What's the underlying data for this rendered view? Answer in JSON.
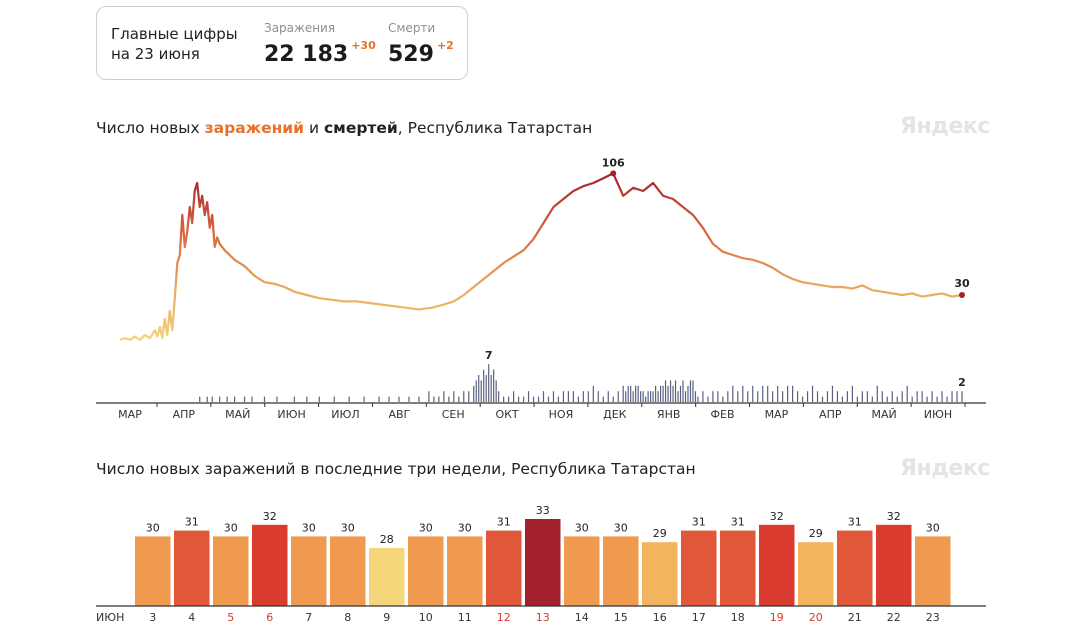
{
  "summary": {
    "label_line1": "Главные цифры",
    "label_line2": "на 23 июня",
    "cases_caption": "Заражения",
    "cases_value": "22 183",
    "cases_delta": "+30",
    "deaths_caption": "Смерти",
    "deaths_value": "529",
    "deaths_delta": "+2"
  },
  "chart1_title": {
    "prefix": "Число новых ",
    "accent": "заражений",
    "middle": " и ",
    "bold": "смертей",
    "suffix": ", Республика Татарстан"
  },
  "chart2_title": "Число новых заражений в последние три недели, Республика Татарстан",
  "logo_text": "Яндекс",
  "colors": {
    "low": "#f5d67a",
    "mid": "#ef9a4f",
    "high": "#e0573a",
    "top": "#a3202c",
    "death_bar": "#5a6180",
    "axis": "#333333",
    "red_label": "#d33a2c"
  },
  "chart_data": [
    {
      "type": "line",
      "ylabel": "",
      "month_labels": [
        "МАР",
        "АПР",
        "МАЙ",
        "ИЮН",
        "ИЮЛ",
        "АВГ",
        "СЕН",
        "ОКТ",
        "НОЯ",
        "ДЕК",
        "ЯНВ",
        "ФЕВ",
        "МАР",
        "АПР",
        "МАЙ",
        "ИЮН"
      ],
      "series": [
        {
          "key": "cases",
          "points": [
            [
              0,
              2
            ],
            [
              2,
              3
            ],
            [
              4,
              2
            ],
            [
              6,
              4
            ],
            [
              8,
              2
            ],
            [
              10,
              5
            ],
            [
              12,
              3
            ],
            [
              14,
              8
            ],
            [
              15,
              4
            ],
            [
              16,
              10
            ],
            [
              17,
              3
            ],
            [
              18,
              15
            ],
            [
              19,
              5
            ],
            [
              20,
              20
            ],
            [
              21,
              8
            ],
            [
              22,
              28
            ],
            [
              23,
              50
            ],
            [
              24,
              55
            ],
            [
              25,
              80
            ],
            [
              26,
              60
            ],
            [
              27,
              70
            ],
            [
              28,
              85
            ],
            [
              29,
              75
            ],
            [
              30,
              95
            ],
            [
              31,
              100
            ],
            [
              32,
              85
            ],
            [
              33,
              92
            ],
            [
              34,
              80
            ],
            [
              35,
              88
            ],
            [
              36,
              72
            ],
            [
              37,
              80
            ],
            [
              38,
              60
            ],
            [
              39,
              66
            ],
            [
              40,
              62
            ],
            [
              42,
              58
            ],
            [
              44,
              55
            ],
            [
              46,
              52
            ],
            [
              50,
              48
            ],
            [
              54,
              42
            ],
            [
              58,
              38
            ],
            [
              62,
              37
            ],
            [
              66,
              35
            ],
            [
              70,
              32
            ],
            [
              75,
              30
            ],
            [
              80,
              28
            ],
            [
              85,
              27
            ],
            [
              90,
              26
            ],
            [
              95,
              26
            ],
            [
              100,
              25
            ],
            [
              105,
              24
            ],
            [
              110,
              23
            ],
            [
              115,
              22
            ],
            [
              120,
              21
            ],
            [
              125,
              22
            ],
            [
              130,
              24
            ],
            [
              134,
              26
            ],
            [
              138,
              30
            ],
            [
              142,
              35
            ],
            [
              146,
              40
            ],
            [
              150,
              45
            ],
            [
              154,
              50
            ],
            [
              158,
              54
            ],
            [
              162,
              58
            ],
            [
              166,
              65
            ],
            [
              170,
              75
            ],
            [
              174,
              85
            ],
            [
              178,
              90
            ],
            [
              182,
              95
            ],
            [
              186,
              98
            ],
            [
              190,
              100
            ],
            [
              194,
              103
            ],
            [
              198,
              106
            ],
            [
              202,
              92
            ],
            [
              206,
              97
            ],
            [
              210,
              95
            ],
            [
              214,
              100
            ],
            [
              218,
              92
            ],
            [
              222,
              90
            ],
            [
              226,
              85
            ],
            [
              230,
              80
            ],
            [
              234,
              72
            ],
            [
              238,
              62
            ],
            [
              242,
              57
            ],
            [
              246,
              55
            ],
            [
              250,
              53
            ],
            [
              254,
              52
            ],
            [
              258,
              50
            ],
            [
              262,
              47
            ],
            [
              266,
              43
            ],
            [
              270,
              40
            ],
            [
              274,
              38
            ],
            [
              278,
              37
            ],
            [
              282,
              36
            ],
            [
              286,
              35
            ],
            [
              290,
              35
            ],
            [
              294,
              34
            ],
            [
              298,
              36
            ],
            [
              302,
              33
            ],
            [
              306,
              32
            ],
            [
              310,
              31
            ],
            [
              314,
              30
            ],
            [
              318,
              31
            ],
            [
              322,
              29
            ],
            [
              326,
              30
            ],
            [
              330,
              31
            ],
            [
              334,
              29
            ],
            [
              338,
              30
            ]
          ],
          "peak": {
            "x": 198,
            "value": 106
          },
          "last": {
            "x": 338,
            "value": 30
          }
        },
        {
          "key": "deaths",
          "points": [
            [
              32,
              1
            ],
            [
              35,
              1
            ],
            [
              37,
              1
            ],
            [
              40,
              1
            ],
            [
              43,
              1
            ],
            [
              46,
              1
            ],
            [
              50,
              1
            ],
            [
              53,
              1
            ],
            [
              58,
              1
            ],
            [
              63,
              1
            ],
            [
              70,
              1
            ],
            [
              75,
              1
            ],
            [
              80,
              1
            ],
            [
              86,
              1
            ],
            [
              92,
              1
            ],
            [
              98,
              1
            ],
            [
              104,
              1
            ],
            [
              108,
              1
            ],
            [
              112,
              1
            ],
            [
              116,
              1
            ],
            [
              120,
              1
            ],
            [
              124,
              2
            ],
            [
              126,
              1
            ],
            [
              128,
              1
            ],
            [
              130,
              2
            ],
            [
              132,
              1
            ],
            [
              134,
              2
            ],
            [
              136,
              1
            ],
            [
              138,
              2
            ],
            [
              140,
              2
            ],
            [
              142,
              3
            ],
            [
              143,
              4
            ],
            [
              144,
              5
            ],
            [
              145,
              4
            ],
            [
              146,
              6
            ],
            [
              147,
              5
            ],
            [
              148,
              7
            ],
            [
              149,
              5
            ],
            [
              150,
              6
            ],
            [
              151,
              4
            ],
            [
              152,
              2
            ],
            [
              154,
              1
            ],
            [
              156,
              1
            ],
            [
              158,
              2
            ],
            [
              160,
              1
            ],
            [
              162,
              1
            ],
            [
              164,
              2
            ],
            [
              166,
              1
            ],
            [
              168,
              1
            ],
            [
              170,
              2
            ],
            [
              172,
              1
            ],
            [
              174,
              2
            ],
            [
              176,
              1
            ],
            [
              178,
              2
            ],
            [
              180,
              2
            ],
            [
              182,
              2
            ],
            [
              184,
              1
            ],
            [
              186,
              2
            ],
            [
              188,
              2
            ],
            [
              190,
              3
            ],
            [
              192,
              2
            ],
            [
              194,
              1
            ],
            [
              196,
              2
            ],
            [
              198,
              1
            ],
            [
              200,
              2
            ],
            [
              202,
              3
            ],
            [
              203,
              2
            ],
            [
              204,
              3
            ],
            [
              205,
              3
            ],
            [
              206,
              2
            ],
            [
              207,
              3
            ],
            [
              208,
              3
            ],
            [
              209,
              2
            ],
            [
              210,
              2
            ],
            [
              211,
              1
            ],
            [
              212,
              2
            ],
            [
              213,
              2
            ],
            [
              214,
              2
            ],
            [
              215,
              3
            ],
            [
              216,
              2
            ],
            [
              217,
              3
            ],
            [
              218,
              3
            ],
            [
              219,
              4
            ],
            [
              220,
              3
            ],
            [
              221,
              4
            ],
            [
              222,
              3
            ],
            [
              223,
              4
            ],
            [
              224,
              2
            ],
            [
              225,
              3
            ],
            [
              226,
              4
            ],
            [
              227,
              2
            ],
            [
              228,
              3
            ],
            [
              229,
              4
            ],
            [
              230,
              4
            ],
            [
              231,
              2
            ],
            [
              232,
              1
            ],
            [
              234,
              2
            ],
            [
              236,
              1
            ],
            [
              238,
              2
            ],
            [
              240,
              2
            ],
            [
              242,
              1
            ],
            [
              244,
              2
            ],
            [
              246,
              3
            ],
            [
              248,
              2
            ],
            [
              250,
              3
            ],
            [
              252,
              2
            ],
            [
              254,
              3
            ],
            [
              256,
              2
            ],
            [
              258,
              3
            ],
            [
              260,
              3
            ],
            [
              262,
              2
            ],
            [
              264,
              3
            ],
            [
              266,
              2
            ],
            [
              268,
              3
            ],
            [
              270,
              3
            ],
            [
              272,
              2
            ],
            [
              274,
              1
            ],
            [
              276,
              2
            ],
            [
              278,
              3
            ],
            [
              280,
              2
            ],
            [
              282,
              1
            ],
            [
              284,
              2
            ],
            [
              286,
              3
            ],
            [
              288,
              2
            ],
            [
              290,
              1
            ],
            [
              292,
              2
            ],
            [
              294,
              3
            ],
            [
              296,
              1
            ],
            [
              298,
              2
            ],
            [
              300,
              2
            ],
            [
              302,
              1
            ],
            [
              304,
              3
            ],
            [
              306,
              2
            ],
            [
              308,
              1
            ],
            [
              310,
              2
            ],
            [
              312,
              1
            ],
            [
              314,
              2
            ],
            [
              316,
              3
            ],
            [
              318,
              1
            ],
            [
              320,
              2
            ],
            [
              322,
              2
            ],
            [
              324,
              1
            ],
            [
              326,
              2
            ],
            [
              328,
              1
            ],
            [
              330,
              2
            ],
            [
              332,
              1
            ],
            [
              334,
              2
            ],
            [
              336,
              2
            ],
            [
              338,
              2
            ]
          ],
          "peak": {
            "x": 148,
            "value": 7
          },
          "last": {
            "x": 338,
            "value": 2
          }
        }
      ]
    },
    {
      "type": "bar",
      "axis_month": "ИЮН",
      "categories": [
        "3",
        "4",
        "5",
        "6",
        "7",
        "8",
        "9",
        "10",
        "11",
        "12",
        "13",
        "14",
        "15",
        "16",
        "17",
        "18",
        "19",
        "20",
        "21",
        "22",
        "23"
      ],
      "values": [
        30,
        31,
        30,
        32,
        30,
        30,
        28,
        30,
        30,
        31,
        33,
        30,
        30,
        29,
        31,
        31,
        32,
        29,
        31,
        32,
        30
      ],
      "weekend_categories": [
        "5",
        "6",
        "12",
        "13",
        "19",
        "20"
      ]
    }
  ]
}
